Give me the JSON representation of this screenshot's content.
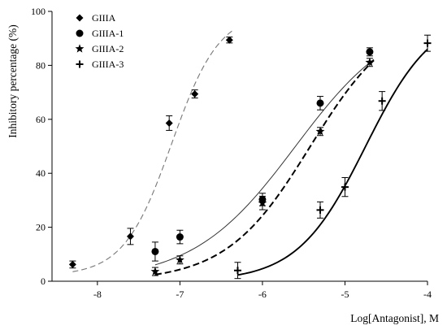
{
  "chart_data": {
    "type": "scatter",
    "xlabel": "Log[Antagonist], M",
    "ylabel": "Inhibitory percentage (%)",
    "xlim": [
      -8.55,
      -4.0
    ],
    "ylim": [
      0,
      100
    ],
    "x_ticks": [
      -8,
      -7,
      -6,
      -5,
      -4
    ],
    "x_tick_labels": [
      "-8",
      "-7",
      "-6",
      "-5",
      "-4"
    ],
    "y_ticks": [
      0,
      20,
      40,
      60,
      80,
      100
    ],
    "y_tick_labels": [
      "0",
      "20",
      "40",
      "60",
      "80",
      "100"
    ],
    "grid": false,
    "legend_position": "top-left",
    "series": [
      {
        "name": "GIIIA",
        "marker": "diamond",
        "line_style": "dashed-light",
        "color": "#000000",
        "line_color": "#777777",
        "points": [
          {
            "x": -8.3,
            "y": 6.2,
            "err": 1.3
          },
          {
            "x": -7.6,
            "y": 16.6,
            "err": 3.0
          },
          {
            "x": -7.13,
            "y": 58.6,
            "err": 2.7
          },
          {
            "x": -6.82,
            "y": 69.4,
            "err": 1.5
          },
          {
            "x": -6.4,
            "y": 89.4,
            "err": 1.1
          }
        ],
        "fit": {
          "bottom": 2,
          "top": 100,
          "log_ic50": -7.1,
          "hill": 1.5,
          "x_from": -8.3,
          "x_to": -6.35
        }
      },
      {
        "name": "GIIIA-1",
        "marker": "circle",
        "line_style": "solid-thin",
        "color": "#000000",
        "line_color": "#333333",
        "points": [
          {
            "x": -7.3,
            "y": 11.0,
            "err": 3.5
          },
          {
            "x": -7.0,
            "y": 16.4,
            "err": 2.5
          },
          {
            "x": -6.0,
            "y": 30.3,
            "err": 2.3
          },
          {
            "x": -5.3,
            "y": 66.0,
            "err": 2.5
          },
          {
            "x": -4.7,
            "y": 85.0,
            "err": 1.5
          }
        ],
        "fit": {
          "bottom": 0,
          "top": 100,
          "log_ic50": -5.6,
          "hill": 0.7,
          "x_from": -7.3,
          "x_to": -4.65
        }
      },
      {
        "name": "GIIIA-2",
        "marker": "star",
        "line_style": "dashed-bold",
        "color": "#000000",
        "line_color": "#000000",
        "points": [
          {
            "x": -7.3,
            "y": 3.6,
            "err": 1.5
          },
          {
            "x": -7.0,
            "y": 7.9,
            "err": 1.5
          },
          {
            "x": -6.0,
            "y": 29.0,
            "err": 2.5
          },
          {
            "x": -5.3,
            "y": 55.5,
            "err": 1.5
          },
          {
            "x": -4.7,
            "y": 81.1,
            "err": 1.5
          }
        ],
        "fit": {
          "bottom": 0,
          "top": 100,
          "log_ic50": -5.42,
          "hill": 0.85,
          "x_from": -7.3,
          "x_to": -4.65
        }
      },
      {
        "name": "GIIIA-3",
        "marker": "plus",
        "line_style": "solid-bold",
        "color": "#000000",
        "line_color": "#000000",
        "points": [
          {
            "x": -6.3,
            "y": 4.0,
            "err": 3.0
          },
          {
            "x": -5.3,
            "y": 26.4,
            "err": 3.0
          },
          {
            "x": -5.0,
            "y": 34.9,
            "err": 3.5
          },
          {
            "x": -4.55,
            "y": 66.8,
            "err": 3.5
          },
          {
            "x": -4.0,
            "y": 88.2,
            "err": 3.0
          }
        ],
        "fit": {
          "bottom": 0,
          "top": 100,
          "log_ic50": -4.75,
          "hill": 1.05,
          "x_from": -6.3,
          "x_to": -4.0
        }
      }
    ]
  }
}
